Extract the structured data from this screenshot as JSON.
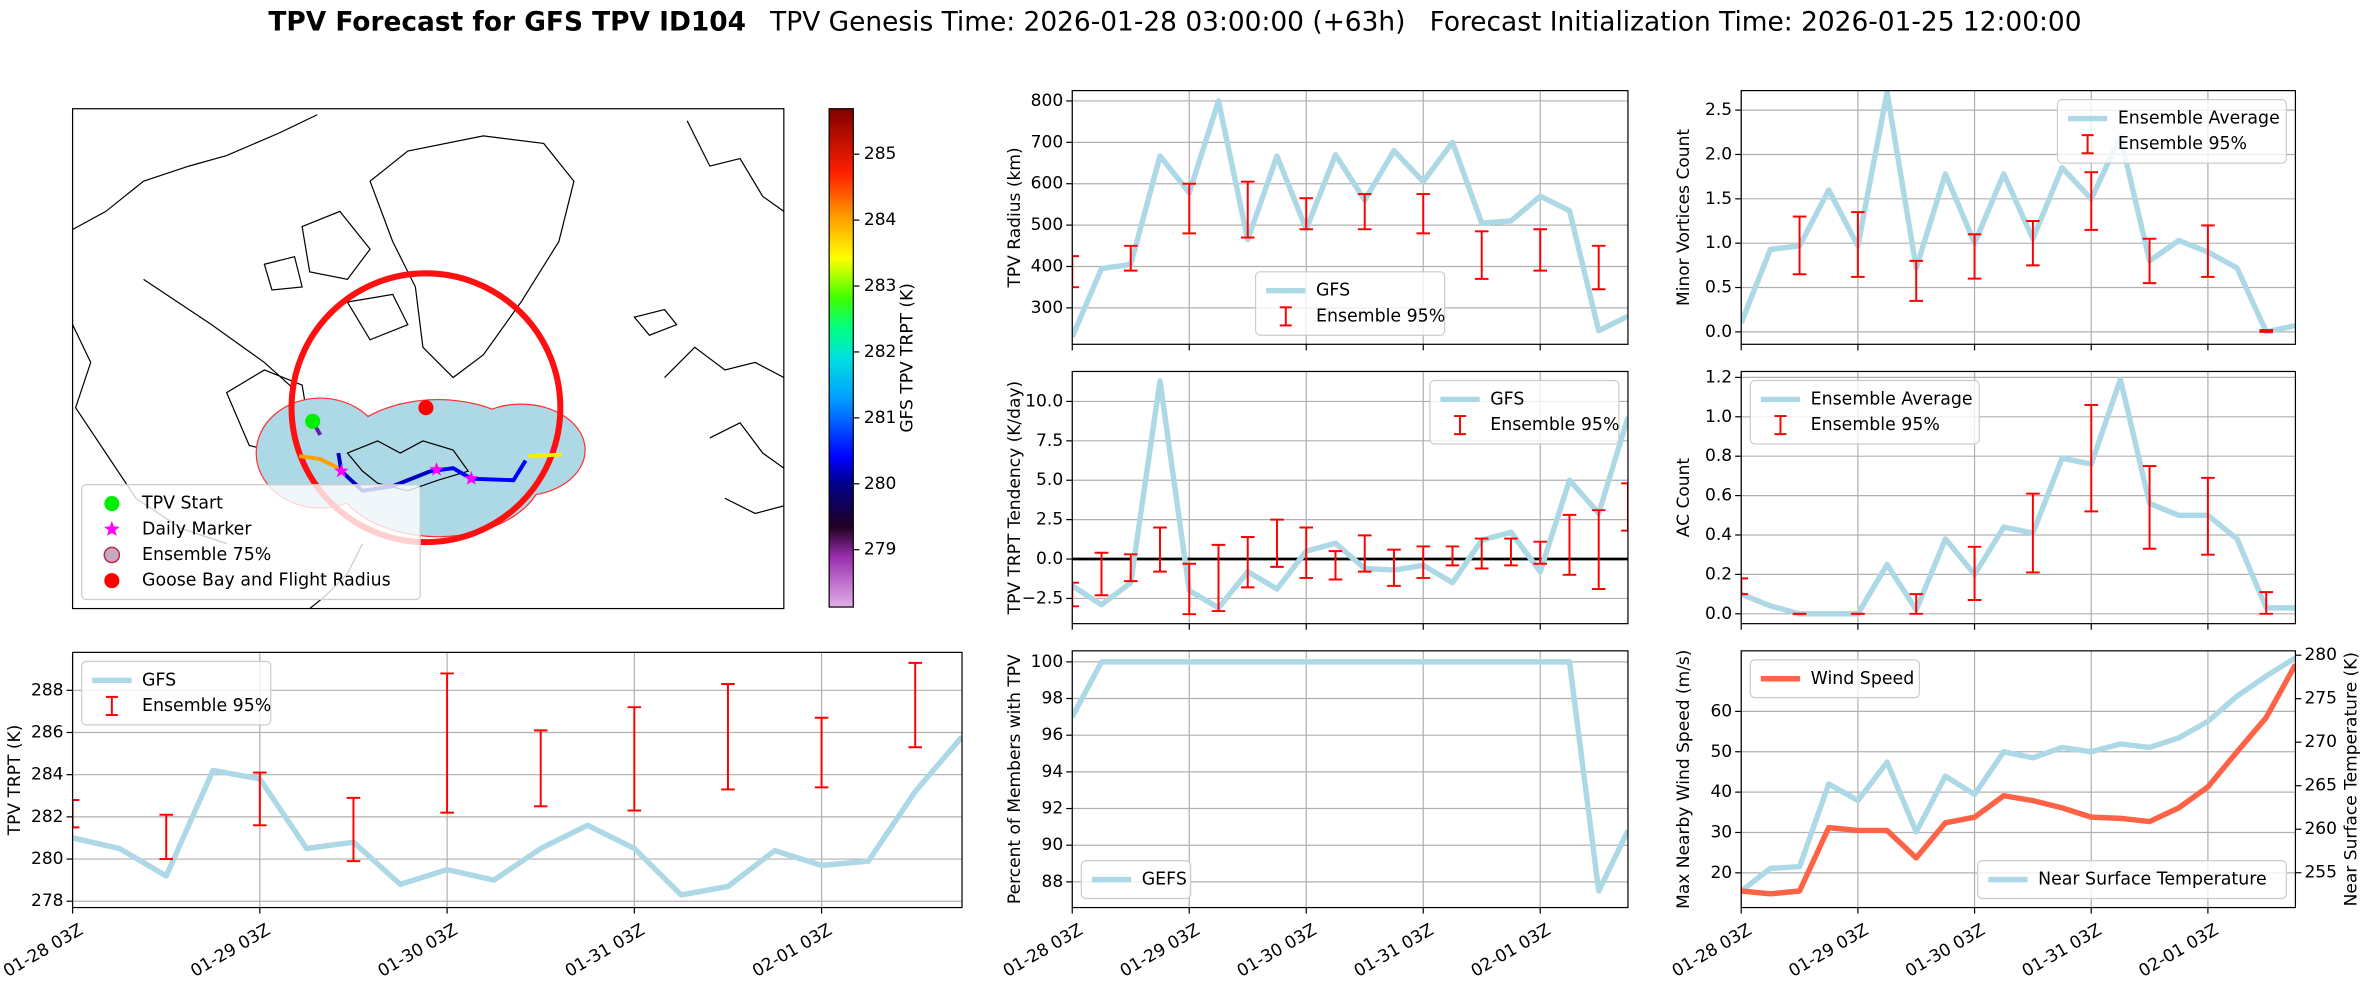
{
  "title": {
    "bold": "TPV Forecast for GFS TPV ID104",
    "genesis": "TPV Genesis Time: 2026-01-28 03:00:00 (+63h)",
    "init": "Forecast Initialization Time: 2026-01-25 12:00:00"
  },
  "chart_data": [
    {
      "type": "map",
      "legend": "lower left",
      "markers": [
        {
          "name": "TPV Start",
          "color": "#00ee00",
          "marker": "circle"
        },
        {
          "name": "Daily Marker",
          "color": "#ff00ff",
          "marker": "star"
        },
        {
          "name": "Ensemble 75%",
          "color": "#c9a9bd",
          "edgecolor": "#b03050",
          "marker": "circle"
        },
        {
          "name": "Goose Bay and Flight Radius",
          "color": "#ff0000",
          "marker": "circle"
        }
      ],
      "colorbar": {
        "label": "GFS TPV TRPT (K)",
        "ticks": [
          279,
          280,
          281,
          282,
          283,
          284,
          285
        ],
        "lim": [
          278.13,
          285.69
        ]
      }
    },
    {
      "type": "line",
      "ylabel": "TPV TRPT (K)",
      "xtick_labels": true,
      "grid": true,
      "legend": "upper left",
      "x": [
        "01-28 03Z",
        "01-28 09Z",
        "01-28 15Z",
        "01-28 21Z",
        "01-29 03Z",
        "01-29 09Z",
        "01-29 15Z",
        "01-29 21Z",
        "01-30 03Z",
        "01-30 09Z",
        "01-30 15Z",
        "01-30 21Z",
        "01-31 03Z",
        "01-31 09Z",
        "01-31 15Z",
        "01-31 21Z",
        "02-01 03Z",
        "02-01 09Z",
        "02-01 15Z",
        "02-01 21Z"
      ],
      "xticks": [
        "01-28 03Z",
        "01-29 03Z",
        "01-30 03Z",
        "01-31 03Z",
        "02-01 03Z"
      ],
      "ylim": [
        277.7,
        289.8
      ],
      "yticks": [
        278,
        280,
        282,
        284,
        286,
        288
      ],
      "series": [
        {
          "name": "GFS",
          "color": "#add8e6",
          "style": "line",
          "values": [
            281.0,
            280.5,
            279.2,
            284.2,
            283.8,
            280.5,
            280.8,
            278.8,
            279.5,
            279.0,
            280.5,
            281.6,
            280.5,
            278.3,
            278.7,
            280.4,
            279.7,
            279.9,
            283.2,
            285.8
          ]
        },
        {
          "name": "Ensemble 95%",
          "color": "#ff0000",
          "style": "errorbar",
          "low": [
            281.5,
            null,
            280.0,
            null,
            281.6,
            null,
            279.9,
            null,
            282.2,
            null,
            282.5,
            null,
            282.3,
            null,
            283.3,
            null,
            283.4,
            null,
            285.3,
            null
          ],
          "high": [
            282.8,
            null,
            282.1,
            null,
            284.1,
            null,
            282.9,
            null,
            288.8,
            null,
            286.1,
            null,
            287.2,
            null,
            288.3,
            null,
            286.7,
            null,
            289.3,
            null
          ]
        }
      ]
    },
    {
      "type": "line",
      "ylabel": "TPV Radius (km)",
      "xtick_labels": false,
      "grid": true,
      "legend": "lower center",
      "x": [
        "01-28 03Z",
        "01-28 09Z",
        "01-28 15Z",
        "01-28 21Z",
        "01-29 03Z",
        "01-29 09Z",
        "01-29 15Z",
        "01-29 21Z",
        "01-30 03Z",
        "01-30 09Z",
        "01-30 15Z",
        "01-30 21Z",
        "01-31 03Z",
        "01-31 09Z",
        "01-31 15Z",
        "01-31 21Z",
        "02-01 03Z",
        "02-01 09Z",
        "02-01 15Z",
        "02-01 21Z"
      ],
      "xticks": [
        "01-28 03Z",
        "01-29 03Z",
        "01-30 03Z",
        "01-31 03Z",
        "02-01 03Z"
      ],
      "ylim": [
        212,
        825
      ],
      "yticks": [
        300,
        400,
        500,
        600,
        700,
        800
      ],
      "series": [
        {
          "name": "GFS",
          "color": "#add8e6",
          "style": "line",
          "values": [
            230,
            395,
            405,
            667,
            578,
            800,
            465,
            667,
            490,
            670,
            560,
            680,
            605,
            700,
            505,
            510,
            570,
            535,
            245,
            280
          ]
        },
        {
          "name": "Ensemble 95%",
          "color": "#ff0000",
          "style": "errorbar",
          "low": [
            350,
            null,
            390,
            null,
            480,
            null,
            470,
            null,
            490,
            null,
            490,
            null,
            480,
            null,
            370,
            null,
            390,
            null,
            345,
            null
          ],
          "high": [
            425,
            null,
            450,
            null,
            600,
            null,
            605,
            null,
            565,
            null,
            575,
            null,
            575,
            null,
            485,
            null,
            490,
            null,
            450,
            null
          ]
        }
      ]
    },
    {
      "type": "line",
      "ylabel": "TPV TRPT Tendency (K/day)",
      "xtick_labels": false,
      "grid": true,
      "legend": "upper right",
      "hline": 0,
      "x": [
        "01-28 03Z",
        "01-28 09Z",
        "01-28 15Z",
        "01-28 21Z",
        "01-29 03Z",
        "01-29 09Z",
        "01-29 15Z",
        "01-29 21Z",
        "01-30 03Z",
        "01-30 09Z",
        "01-30 15Z",
        "01-30 21Z",
        "01-31 03Z",
        "01-31 09Z",
        "01-31 15Z",
        "01-31 21Z",
        "02-01 03Z",
        "02-01 09Z",
        "02-01 15Z",
        "02-01 21Z"
      ],
      "xticks": [
        "01-28 03Z",
        "01-29 03Z",
        "01-30 03Z",
        "01-31 03Z",
        "02-01 03Z"
      ],
      "ylim": [
        -4.1,
        11.9
      ],
      "yticks": [
        {
          "value": -2.5,
          "label": "−2.5"
        },
        {
          "value": 0,
          "label": "0.0"
        },
        2.5,
        {
          "value": 5,
          "label": "5.0"
        },
        7.5,
        {
          "value": 10,
          "label": "10.0"
        }
      ],
      "series": [
        {
          "name": "GFS",
          "color": "#add8e6",
          "style": "line",
          "values": [
            -1.7,
            -2.9,
            -1.5,
            11.3,
            -2.0,
            -3.1,
            -0.8,
            -1.9,
            0.5,
            1.0,
            -0.6,
            -0.7,
            -0.4,
            -1.5,
            1.2,
            1.7,
            -0.8,
            5.0,
            2.9,
            9.0
          ]
        },
        {
          "name": "Ensemble 95%",
          "color": "#ff0000",
          "style": "errorbar",
          "low": [
            -3.0,
            -2.3,
            -1.4,
            -0.8,
            -3.5,
            -3.3,
            -1.8,
            -0.5,
            -1.2,
            -1.3,
            -0.8,
            -1.7,
            -1.2,
            -0.4,
            -0.6,
            -0.4,
            -0.3,
            -1.0,
            -1.9,
            1.8
          ],
          "high": [
            -1.5,
            0.4,
            0.3,
            2.0,
            -0.3,
            0.9,
            1.4,
            2.5,
            2.0,
            0.5,
            1.5,
            0.6,
            0.8,
            0.8,
            1.3,
            1.3,
            1.1,
            2.8,
            3.1,
            4.8
          ]
        }
      ]
    },
    {
      "type": "line",
      "ylabel": "Percent of Members with TPV",
      "xtick_labels": true,
      "grid": true,
      "legend": "lower left",
      "x": [
        "01-28 03Z",
        "01-28 09Z",
        "01-28 15Z",
        "01-28 21Z",
        "01-29 03Z",
        "01-29 09Z",
        "01-29 15Z",
        "01-29 21Z",
        "01-30 03Z",
        "01-30 09Z",
        "01-30 15Z",
        "01-30 21Z",
        "01-31 03Z",
        "01-31 09Z",
        "01-31 15Z",
        "01-31 21Z",
        "02-01 03Z",
        "02-01 09Z",
        "02-01 15Z",
        "02-01 21Z"
      ],
      "xticks": [
        "01-28 03Z",
        "01-29 03Z",
        "01-30 03Z",
        "01-31 03Z",
        "02-01 03Z"
      ],
      "ylim": [
        86.6,
        100.6
      ],
      "yticks": [
        88,
        90,
        92,
        94,
        96,
        98,
        100
      ],
      "series": [
        {
          "name": "GEFS",
          "color": "#add8e6",
          "style": "line",
          "values": [
            97.0,
            100,
            100,
            100,
            100,
            100,
            100,
            100,
            100,
            100,
            100,
            100,
            100,
            100,
            100,
            100,
            100,
            100,
            87.5,
            90.8
          ]
        }
      ]
    },
    {
      "type": "line",
      "ylabel": "Minor Vortices Count",
      "xtick_labels": false,
      "grid": true,
      "legend": "upper right",
      "x": [
        "01-28 03Z",
        "01-28 09Z",
        "01-28 15Z",
        "01-28 21Z",
        "01-29 03Z",
        "01-29 09Z",
        "01-29 15Z",
        "01-29 21Z",
        "01-30 03Z",
        "01-30 09Z",
        "01-30 15Z",
        "01-30 21Z",
        "01-31 03Z",
        "01-31 09Z",
        "01-31 15Z",
        "01-31 21Z",
        "02-01 03Z",
        "02-01 09Z",
        "02-01 15Z",
        "02-01 21Z"
      ],
      "xticks": [
        "01-28 03Z",
        "01-29 03Z",
        "01-30 03Z",
        "01-31 03Z",
        "02-01 03Z"
      ],
      "ylim": [
        -0.14,
        2.72
      ],
      "yticks": [
        {
          "value": 0,
          "label": "0.0"
        },
        0.5,
        {
          "value": 1,
          "label": "1.0"
        },
        1.5,
        {
          "value": 2,
          "label": "2.0"
        },
        2.5
      ],
      "series": [
        {
          "name": "Ensemble Average",
          "color": "#add8e6",
          "style": "line",
          "values": [
            0.1,
            0.93,
            0.97,
            1.6,
            0.97,
            2.7,
            0.72,
            1.78,
            1.0,
            1.78,
            1.05,
            1.85,
            1.5,
            2.2,
            0.8,
            1.03,
            0.9,
            0.72,
            0.0,
            0.07
          ]
        },
        {
          "name": "Ensemble 95%",
          "color": "#ff0000",
          "style": "errorbar",
          "low": [
            null,
            null,
            0.65,
            null,
            0.62,
            null,
            0.35,
            null,
            0.6,
            null,
            0.75,
            null,
            1.15,
            null,
            0.55,
            null,
            0.62,
            null,
            0.0,
            null
          ],
          "high": [
            null,
            null,
            1.3,
            null,
            1.35,
            null,
            0.8,
            null,
            1.1,
            null,
            1.25,
            null,
            1.8,
            null,
            1.05,
            null,
            1.2,
            null,
            0.02,
            null
          ]
        }
      ]
    },
    {
      "type": "line",
      "ylabel": "AC Count",
      "xtick_labels": false,
      "grid": true,
      "legend": "upper left",
      "x": [
        "01-28 03Z",
        "01-28 09Z",
        "01-28 15Z",
        "01-28 21Z",
        "01-29 03Z",
        "01-29 09Z",
        "01-29 15Z",
        "01-29 21Z",
        "01-30 03Z",
        "01-30 09Z",
        "01-30 15Z",
        "01-30 21Z",
        "01-31 03Z",
        "01-31 09Z",
        "01-31 15Z",
        "01-31 21Z",
        "02-01 03Z",
        "02-01 09Z",
        "02-01 15Z",
        "02-01 21Z"
      ],
      "xticks": [
        "01-28 03Z",
        "01-29 03Z",
        "01-30 03Z",
        "01-31 03Z",
        "02-01 03Z"
      ],
      "ylim": [
        -0.05,
        1.23
      ],
      "yticks": [
        {
          "value": 0,
          "label": "0.0"
        },
        0.2,
        0.4,
        0.6,
        0.8,
        {
          "value": 1,
          "label": "1.0"
        },
        1.2
      ],
      "series": [
        {
          "name": "Ensemble Average",
          "color": "#add8e6",
          "style": "line",
          "values": [
            0.1,
            0.04,
            0.0,
            0.0,
            0.0,
            0.25,
            0.02,
            0.38,
            0.2,
            0.44,
            0.41,
            0.79,
            0.76,
            1.19,
            0.56,
            0.5,
            0.5,
            0.38,
            0.03,
            0.03
          ]
        },
        {
          "name": "Ensemble 95%",
          "color": "#ff0000",
          "style": "errorbar",
          "low": [
            0.1,
            null,
            0.0,
            null,
            0.0,
            null,
            0.0,
            null,
            0.07,
            null,
            0.21,
            null,
            0.52,
            null,
            0.33,
            null,
            0.3,
            null,
            0.0,
            null
          ],
          "high": [
            0.18,
            null,
            0.0,
            null,
            0.0,
            null,
            0.1,
            null,
            0.34,
            null,
            0.61,
            null,
            1.06,
            null,
            0.75,
            null,
            0.69,
            null,
            0.11,
            null
          ]
        }
      ]
    },
    {
      "type": "line",
      "ylabel": "Max Nearby Wind Speed (m/s)",
      "ylabel_color": "#ff6347",
      "y2label": "Near Surface Temperature (K)",
      "y2label_color": "#4169e1",
      "xtick_labels": true,
      "grid": true,
      "x": [
        "01-28 03Z",
        "01-28 09Z",
        "01-28 15Z",
        "01-28 21Z",
        "01-29 03Z",
        "01-29 09Z",
        "01-29 15Z",
        "01-29 21Z",
        "01-30 03Z",
        "01-30 09Z",
        "01-30 15Z",
        "01-30 21Z",
        "01-31 03Z",
        "01-31 09Z",
        "01-31 15Z",
        "01-31 21Z",
        "02-01 03Z",
        "02-01 09Z",
        "02-01 15Z",
        "02-01 21Z"
      ],
      "xticks": [
        "01-28 03Z",
        "01-29 03Z",
        "01-30 03Z",
        "01-31 03Z",
        "02-01 03Z"
      ],
      "ylim": [
        11.4,
        75
      ],
      "yticks": [
        20,
        30,
        40,
        50,
        60
      ],
      "y2lim": [
        251.0,
        280.5
      ],
      "y2ticks": [
        255,
        260,
        265,
        270,
        275,
        280
      ],
      "series": [
        {
          "name": "Near Surface Temperature",
          "color": "#add8e6",
          "style": "line",
          "axis": "y2",
          "legend": "lower right",
          "values": [
            252.9,
            255.5,
            255.7,
            265.2,
            263.3,
            267.7,
            259.7,
            266.1,
            264.0,
            268.9,
            268.2,
            269.4,
            268.9,
            269.8,
            269.4,
            270.5,
            272.4,
            275.3,
            277.6,
            279.7
          ]
        },
        {
          "name": "Wind Speed",
          "color": "#ff6347",
          "style": "line",
          "legend": "upper left",
          "values": [
            15.5,
            14.8,
            15.5,
            31.2,
            30.5,
            30.5,
            23.7,
            32.4,
            33.8,
            39.1,
            37.9,
            36.1,
            33.8,
            33.5,
            32.7,
            36.1,
            41.3,
            50,
            58.5,
            71.6
          ]
        }
      ]
    }
  ]
}
